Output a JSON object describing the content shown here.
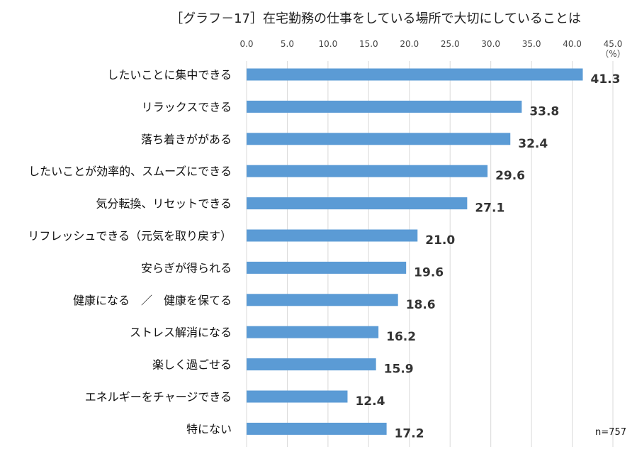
{
  "chart_data": {
    "type": "bar",
    "orientation": "horizontal",
    "title": "［グラフ－17］在宅勤務の仕事をしている場所で大切にしていることは",
    "unit": "（%）",
    "note": "n=757",
    "xlim": [
      0,
      45
    ],
    "ticks": [
      "0.0",
      "5.0",
      "10.0",
      "15.0",
      "20.0",
      "25.0",
      "30.0",
      "35.0",
      "40.0",
      "45.0"
    ],
    "grid": true,
    "bar_color": "#5b9bd5",
    "categories": [
      "したいことに集中できる",
      "リラックスできる",
      "落ち着きががある",
      "したいことが効率的、スムーズにできる",
      "気分転換、リセットできる",
      "リフレッシュできる（元気を取り戻す）",
      "安らぎが得られる",
      "健康になる　／　健康を保てる",
      "ストレス解消になる",
      "楽しく過ごせる",
      "エネルギーをチャージできる",
      "特にない"
    ],
    "values": [
      41.3,
      33.8,
      32.4,
      29.6,
      27.1,
      21.0,
      19.6,
      18.6,
      16.2,
      15.9,
      12.4,
      17.2
    ],
    "labels": [
      "41.3",
      "33.8",
      "32.4",
      "29.6",
      "27.1",
      "21.0",
      "19.6",
      "18.6",
      "16.2",
      "15.9",
      "12.4",
      "17.2"
    ]
  }
}
